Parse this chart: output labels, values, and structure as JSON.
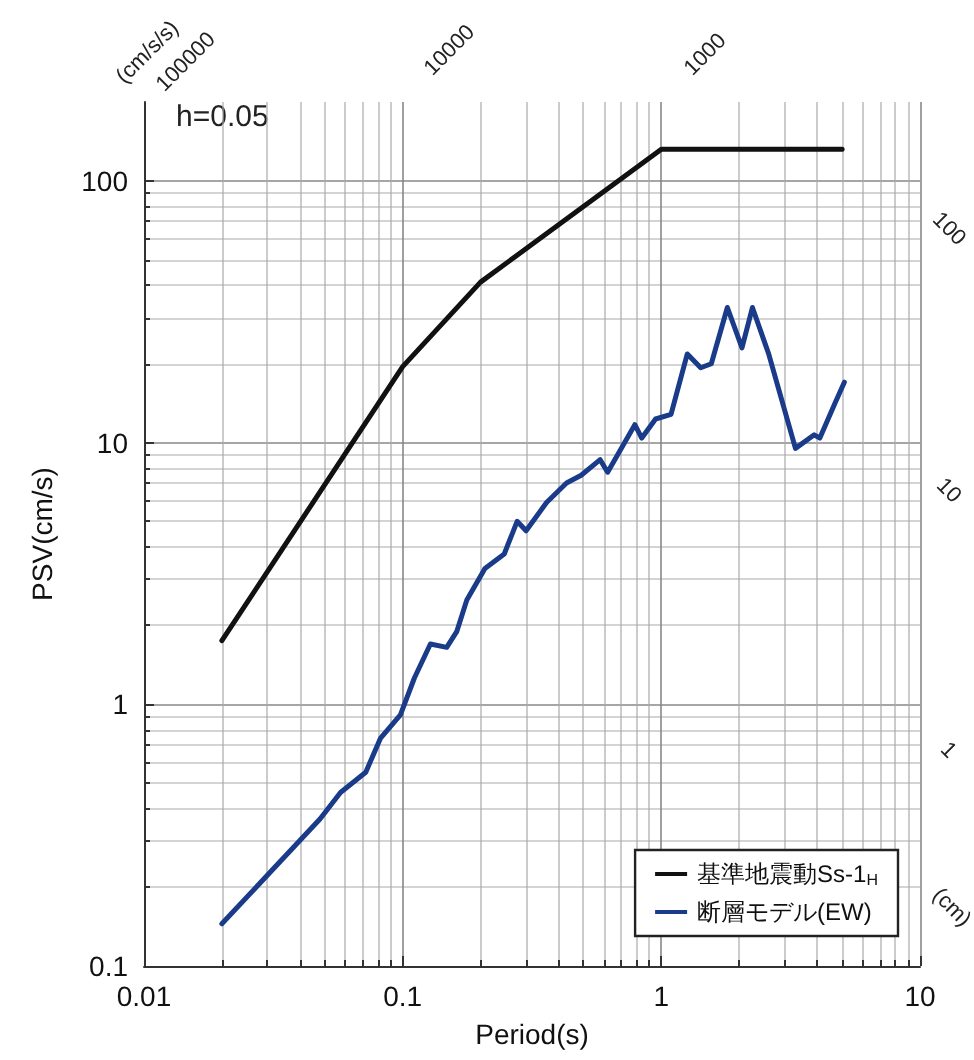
{
  "chart_data": {
    "type": "line",
    "xlabel": "Period(s)",
    "ylabel": "PSV(cm/s)",
    "log": "xy",
    "xlim": [
      0.01,
      10
    ],
    "xticks": [
      0.01,
      0.1,
      1,
      10
    ],
    "ylim": [
      0.1,
      200
    ],
    "yticks": [
      0.1,
      1,
      10,
      100
    ],
    "grid": true,
    "legend": "bottom right",
    "marker": "none",
    "line_style": "solid",
    "annotations": [
      "h=0.05",
      "(cm/s/s)",
      "100000",
      "10000",
      "1000",
      "100",
      "10",
      "1",
      "(cm)"
    ],
    "series": [
      {
        "name": "基準地震動Ss-1$_{H}$",
        "color": "#111111",
        "x": [
          0.02,
          0.1,
          0.2,
          1,
          5
        ],
        "values": [
          1.75,
          19.5,
          41,
          132,
          132
        ]
      },
      {
        "name": "断層モデル(EW)",
        "color": "#1a3a8a",
        "x": [
          0.02,
          0.048,
          0.0575,
          0.072,
          0.082,
          0.098,
          0.111,
          0.128,
          0.148,
          0.162,
          0.177,
          0.208,
          0.247,
          0.277,
          0.3,
          0.36,
          0.43,
          0.49,
          0.58,
          0.62,
          0.79,
          0.84,
          0.95,
          1.09,
          1.26,
          1.42,
          1.56,
          1.8,
          2.05,
          2.25,
          2.6,
          3.3,
          3.9,
          4.1,
          4.7,
          5.1
        ],
        "values": [
          0.145,
          0.365,
          0.46,
          0.55,
          0.74,
          0.91,
          1.26,
          1.7,
          1.65,
          1.9,
          2.5,
          3.3,
          3.75,
          5.0,
          4.6,
          5.9,
          7.0,
          7.5,
          8.6,
          7.7,
          11.7,
          10.4,
          12.3,
          12.8,
          21.8,
          19.3,
          20,
          32.8,
          23,
          32.8,
          21.8,
          9.5,
          10.7,
          10.4,
          14.2,
          17
        ]
      }
    ]
  }
}
